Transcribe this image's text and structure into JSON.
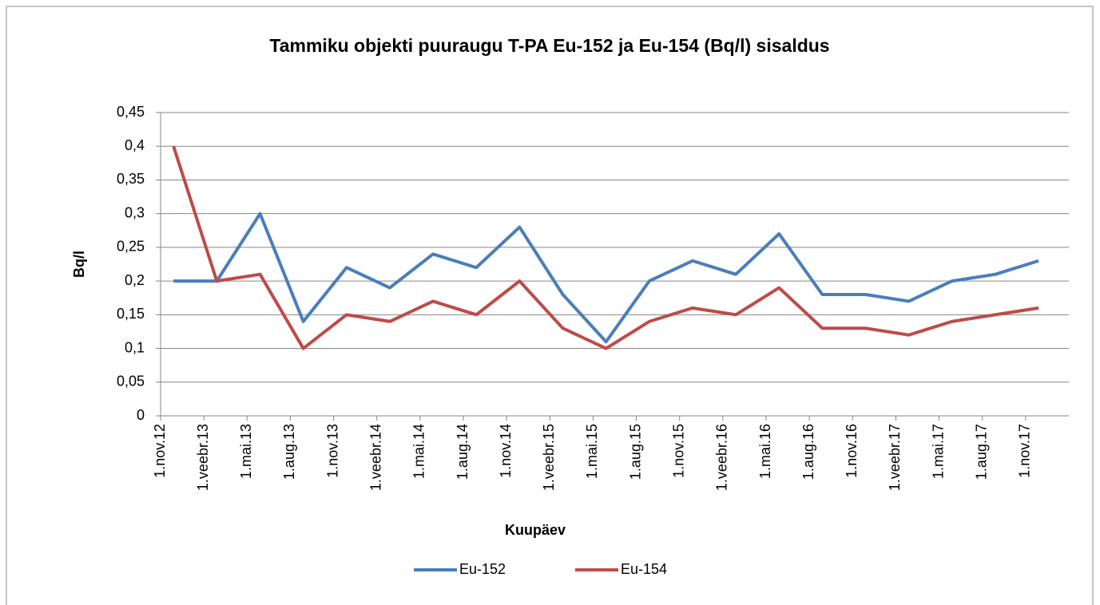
{
  "chart_data": {
    "type": "line",
    "title": "Tammiku objekti puuraugu T-PA Eu-152 ja Eu-154 (Bq/l) sisaldus",
    "xlabel": "Kuupäev",
    "ylabel": "Bq/l",
    "categories": [
      "1.nov.12",
      "1.veebr.13",
      "1.mai.13",
      "1.aug.13",
      "1.nov.13",
      "1.veebr.14",
      "1.mai.14",
      "1.aug.14",
      "1.nov.14",
      "1.veebr.15",
      "1.mai.15",
      "1.aug.15",
      "1.nov.15",
      "1.veebr.16",
      "1.mai.16",
      "1.aug.16",
      "1.nov.16",
      "1.veebr.17",
      "1.mai.17",
      "1.aug.17",
      "1.nov.17"
    ],
    "series": [
      {
        "name": "Eu-152",
        "color": "#4a7ebb",
        "values": [
          0.2,
          0.2,
          0.3,
          0.14,
          0.22,
          0.19,
          0.24,
          0.22,
          0.28,
          0.18,
          0.11,
          0.2,
          0.23,
          0.21,
          0.27,
          0.18,
          0.18,
          0.17,
          0.2,
          0.21,
          0.23
        ]
      },
      {
        "name": "Eu-154",
        "color": "#be4b48",
        "values": [
          0.4,
          0.2,
          0.21,
          0.1,
          0.15,
          0.14,
          0.17,
          0.15,
          0.2,
          0.13,
          0.1,
          0.14,
          0.16,
          0.15,
          0.19,
          0.13,
          0.13,
          0.12,
          0.14,
          0.15,
          0.16
        ]
      }
    ],
    "ylim": [
      0,
      0.45
    ],
    "yticks": [
      0,
      {
        "value": 0.05,
        "label": "0,05"
      },
      {
        "value": 0.1,
        "label": "0,1"
      },
      {
        "value": 0.15,
        "label": "0,15"
      },
      {
        "value": 0.2,
        "label": "0,2"
      },
      {
        "value": 0.25,
        "label": "0,25"
      },
      {
        "value": 0.3,
        "label": "0,3"
      },
      {
        "value": 0.35,
        "label": "0,35"
      },
      {
        "value": 0.4,
        "label": "0,4"
      },
      {
        "value": 0.45,
        "label": "0,45"
      }
    ],
    "grid": true,
    "legend": "bottom"
  }
}
